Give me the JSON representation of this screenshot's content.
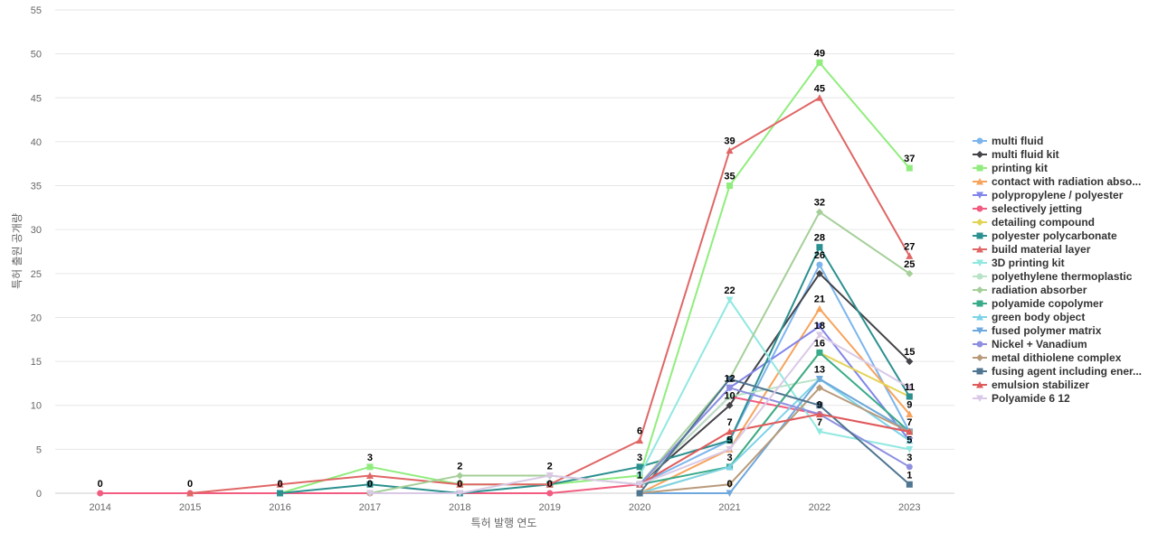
{
  "chart_data": {
    "type": "line",
    "title": "",
    "xlabel": "특허 발행 연도",
    "ylabel": "특허 출원 공개량",
    "ylim": [
      0,
      55
    ],
    "yticks": [
      0,
      5,
      10,
      15,
      20,
      25,
      30,
      35,
      40,
      45,
      50,
      55
    ],
    "x": [
      "2014",
      "2015",
      "2016",
      "2017",
      "2018",
      "2019",
      "2020",
      "2021",
      "2022",
      "2023"
    ],
    "grid": true,
    "legend_position": "right",
    "series": [
      {
        "name": "multi fluid",
        "color": "#7cb5ec",
        "marker": "circle",
        "values": [
          null,
          null,
          null,
          null,
          null,
          null,
          1,
          6,
          26,
          7
        ]
      },
      {
        "name": "multi fluid kit",
        "color": "#434348",
        "marker": "diamond",
        "values": [
          null,
          null,
          null,
          null,
          null,
          null,
          1,
          10,
          25,
          15
        ]
      },
      {
        "name": "printing kit",
        "color": "#90ed7d",
        "marker": "square",
        "values": [
          null,
          null,
          0,
          3,
          1,
          1,
          2,
          35,
          49,
          37
        ]
      },
      {
        "name": "contact with radiation abso...",
        "color": "#f7a35c",
        "marker": "triangle",
        "values": [
          null,
          null,
          null,
          null,
          null,
          null,
          0,
          5,
          21,
          9
        ]
      },
      {
        "name": "polypropylene / polyester",
        "color": "#8085e9",
        "marker": "triangle-down",
        "values": [
          null,
          null,
          null,
          null,
          null,
          null,
          1,
          12,
          19,
          6
        ]
      },
      {
        "name": "selectively jetting",
        "color": "#f15c80",
        "marker": "circle",
        "values": [
          0,
          0,
          0,
          0,
          0,
          0,
          1,
          11,
          9,
          7
        ]
      },
      {
        "name": "detailing compound",
        "color": "#e4d354",
        "marker": "diamond",
        "values": [
          null,
          null,
          null,
          null,
          null,
          null,
          0,
          3,
          16,
          11
        ]
      },
      {
        "name": "polyester polycarbonate",
        "color": "#2b908f",
        "marker": "square",
        "values": [
          null,
          null,
          0,
          1,
          0,
          1,
          3,
          6,
          28,
          11
        ]
      },
      {
        "name": "build material layer",
        "color": "#e06666",
        "marker": "triangle",
        "values": [
          null,
          0,
          1,
          2,
          1,
          1,
          6,
          39,
          45,
          27
        ]
      },
      {
        "name": "3D printing kit",
        "color": "#91e8e1",
        "marker": "triangle-down",
        "values": [
          null,
          null,
          null,
          null,
          null,
          null,
          2,
          22,
          7,
          5
        ]
      },
      {
        "name": "polyethylene thermoplastic",
        "color": "#b9e3c7",
        "marker": "circle",
        "values": [
          null,
          null,
          null,
          null,
          null,
          null,
          1,
          11,
          13,
          7
        ]
      },
      {
        "name": "radiation absorber",
        "color": "#a5cf99",
        "marker": "diamond",
        "values": [
          null,
          null,
          null,
          0,
          2,
          2,
          1,
          13,
          32,
          25
        ]
      },
      {
        "name": "polyamide copolymer",
        "color": "#3aab8a",
        "marker": "square",
        "values": [
          null,
          null,
          null,
          null,
          null,
          null,
          1,
          3,
          16,
          7
        ]
      },
      {
        "name": "green body object",
        "color": "#7dd3e8",
        "marker": "triangle",
        "values": [
          null,
          null,
          null,
          null,
          null,
          null,
          0,
          3,
          13,
          6
        ]
      },
      {
        "name": "fused polymer matrix",
        "color": "#6fa8dc",
        "marker": "triangle-down",
        "values": [
          null,
          null,
          null,
          null,
          null,
          null,
          0,
          0,
          13,
          7
        ]
      },
      {
        "name": "Nickel + Vanadium",
        "color": "#8e8fe0",
        "marker": "circle",
        "values": [
          null,
          null,
          null,
          null,
          null,
          null,
          1,
          12,
          9,
          3
        ]
      },
      {
        "name": "metal dithiolene complex",
        "color": "#b89a7a",
        "marker": "diamond",
        "values": [
          null,
          null,
          null,
          null,
          null,
          null,
          0,
          1,
          12,
          7
        ]
      },
      {
        "name": "fusing agent including ener...",
        "color": "#4f7591",
        "marker": "square",
        "values": [
          null,
          null,
          null,
          null,
          null,
          null,
          0,
          13,
          10,
          1
        ]
      },
      {
        "name": "emulsion stabilizer",
        "color": "#e05a5a",
        "marker": "triangle",
        "values": [
          null,
          null,
          null,
          null,
          null,
          null,
          1,
          7,
          9,
          7
        ]
      },
      {
        "name": "Polyamide 6 12",
        "color": "#d9c9e6",
        "marker": "triangle-down",
        "values": [
          null,
          null,
          null,
          0,
          0,
          2,
          1,
          5,
          18,
          12
        ]
      }
    ],
    "data_labels": [
      {
        "x": "2014",
        "y": 0,
        "text": "0"
      },
      {
        "x": "2015",
        "y": 0,
        "text": "0"
      },
      {
        "x": "2016",
        "y": 0,
        "text": "0"
      },
      {
        "x": "2017",
        "y": 3,
        "text": "3"
      },
      {
        "x": "2017",
        "y": 0,
        "text": "0"
      },
      {
        "x": "2018",
        "y": 2,
        "text": "2"
      },
      {
        "x": "2018",
        "y": 0,
        "text": "0"
      },
      {
        "x": "2019",
        "y": 2,
        "text": "2"
      },
      {
        "x": "2019",
        "y": 0,
        "text": "0"
      },
      {
        "x": "2020",
        "y": 6,
        "text": "6"
      },
      {
        "x": "2020",
        "y": 3,
        "text": "3"
      },
      {
        "x": "2020",
        "y": 1,
        "text": "1"
      },
      {
        "x": "2021",
        "y": 39,
        "text": "39"
      },
      {
        "x": "2021",
        "y": 35,
        "text": "35"
      },
      {
        "x": "2021",
        "y": 22,
        "text": "22"
      },
      {
        "x": "2021",
        "y": 12,
        "text": "12"
      },
      {
        "x": "2021",
        "y": 10,
        "text": "10"
      },
      {
        "x": "2021",
        "y": 7,
        "text": "7"
      },
      {
        "x": "2021",
        "y": 5,
        "text": "5"
      },
      {
        "x": "2021",
        "y": 3,
        "text": "3"
      },
      {
        "x": "2021",
        "y": 0,
        "text": "0"
      },
      {
        "x": "2022",
        "y": 49,
        "text": "49"
      },
      {
        "x": "2022",
        "y": 45,
        "text": "45"
      },
      {
        "x": "2022",
        "y": 32,
        "text": "32"
      },
      {
        "x": "2022",
        "y": 28,
        "text": "28"
      },
      {
        "x": "2022",
        "y": 26,
        "text": "26"
      },
      {
        "x": "2022",
        "y": 21,
        "text": "21"
      },
      {
        "x": "2022",
        "y": 18,
        "text": "18"
      },
      {
        "x": "2022",
        "y": 16,
        "text": "16"
      },
      {
        "x": "2022",
        "y": 13,
        "text": "13"
      },
      {
        "x": "2022",
        "y": 9,
        "text": "9"
      },
      {
        "x": "2022",
        "y": 7,
        "text": "7"
      },
      {
        "x": "2023",
        "y": 37,
        "text": "37"
      },
      {
        "x": "2023",
        "y": 27,
        "text": "27"
      },
      {
        "x": "2023",
        "y": 25,
        "text": "25"
      },
      {
        "x": "2023",
        "y": 15,
        "text": "15"
      },
      {
        "x": "2023",
        "y": 11,
        "text": "11"
      },
      {
        "x": "2023",
        "y": 9,
        "text": "9"
      },
      {
        "x": "2023",
        "y": 7,
        "text": "7"
      },
      {
        "x": "2023",
        "y": 5,
        "text": "5"
      },
      {
        "x": "2023",
        "y": 3,
        "text": "3"
      },
      {
        "x": "2023",
        "y": 1,
        "text": "1"
      }
    ]
  }
}
